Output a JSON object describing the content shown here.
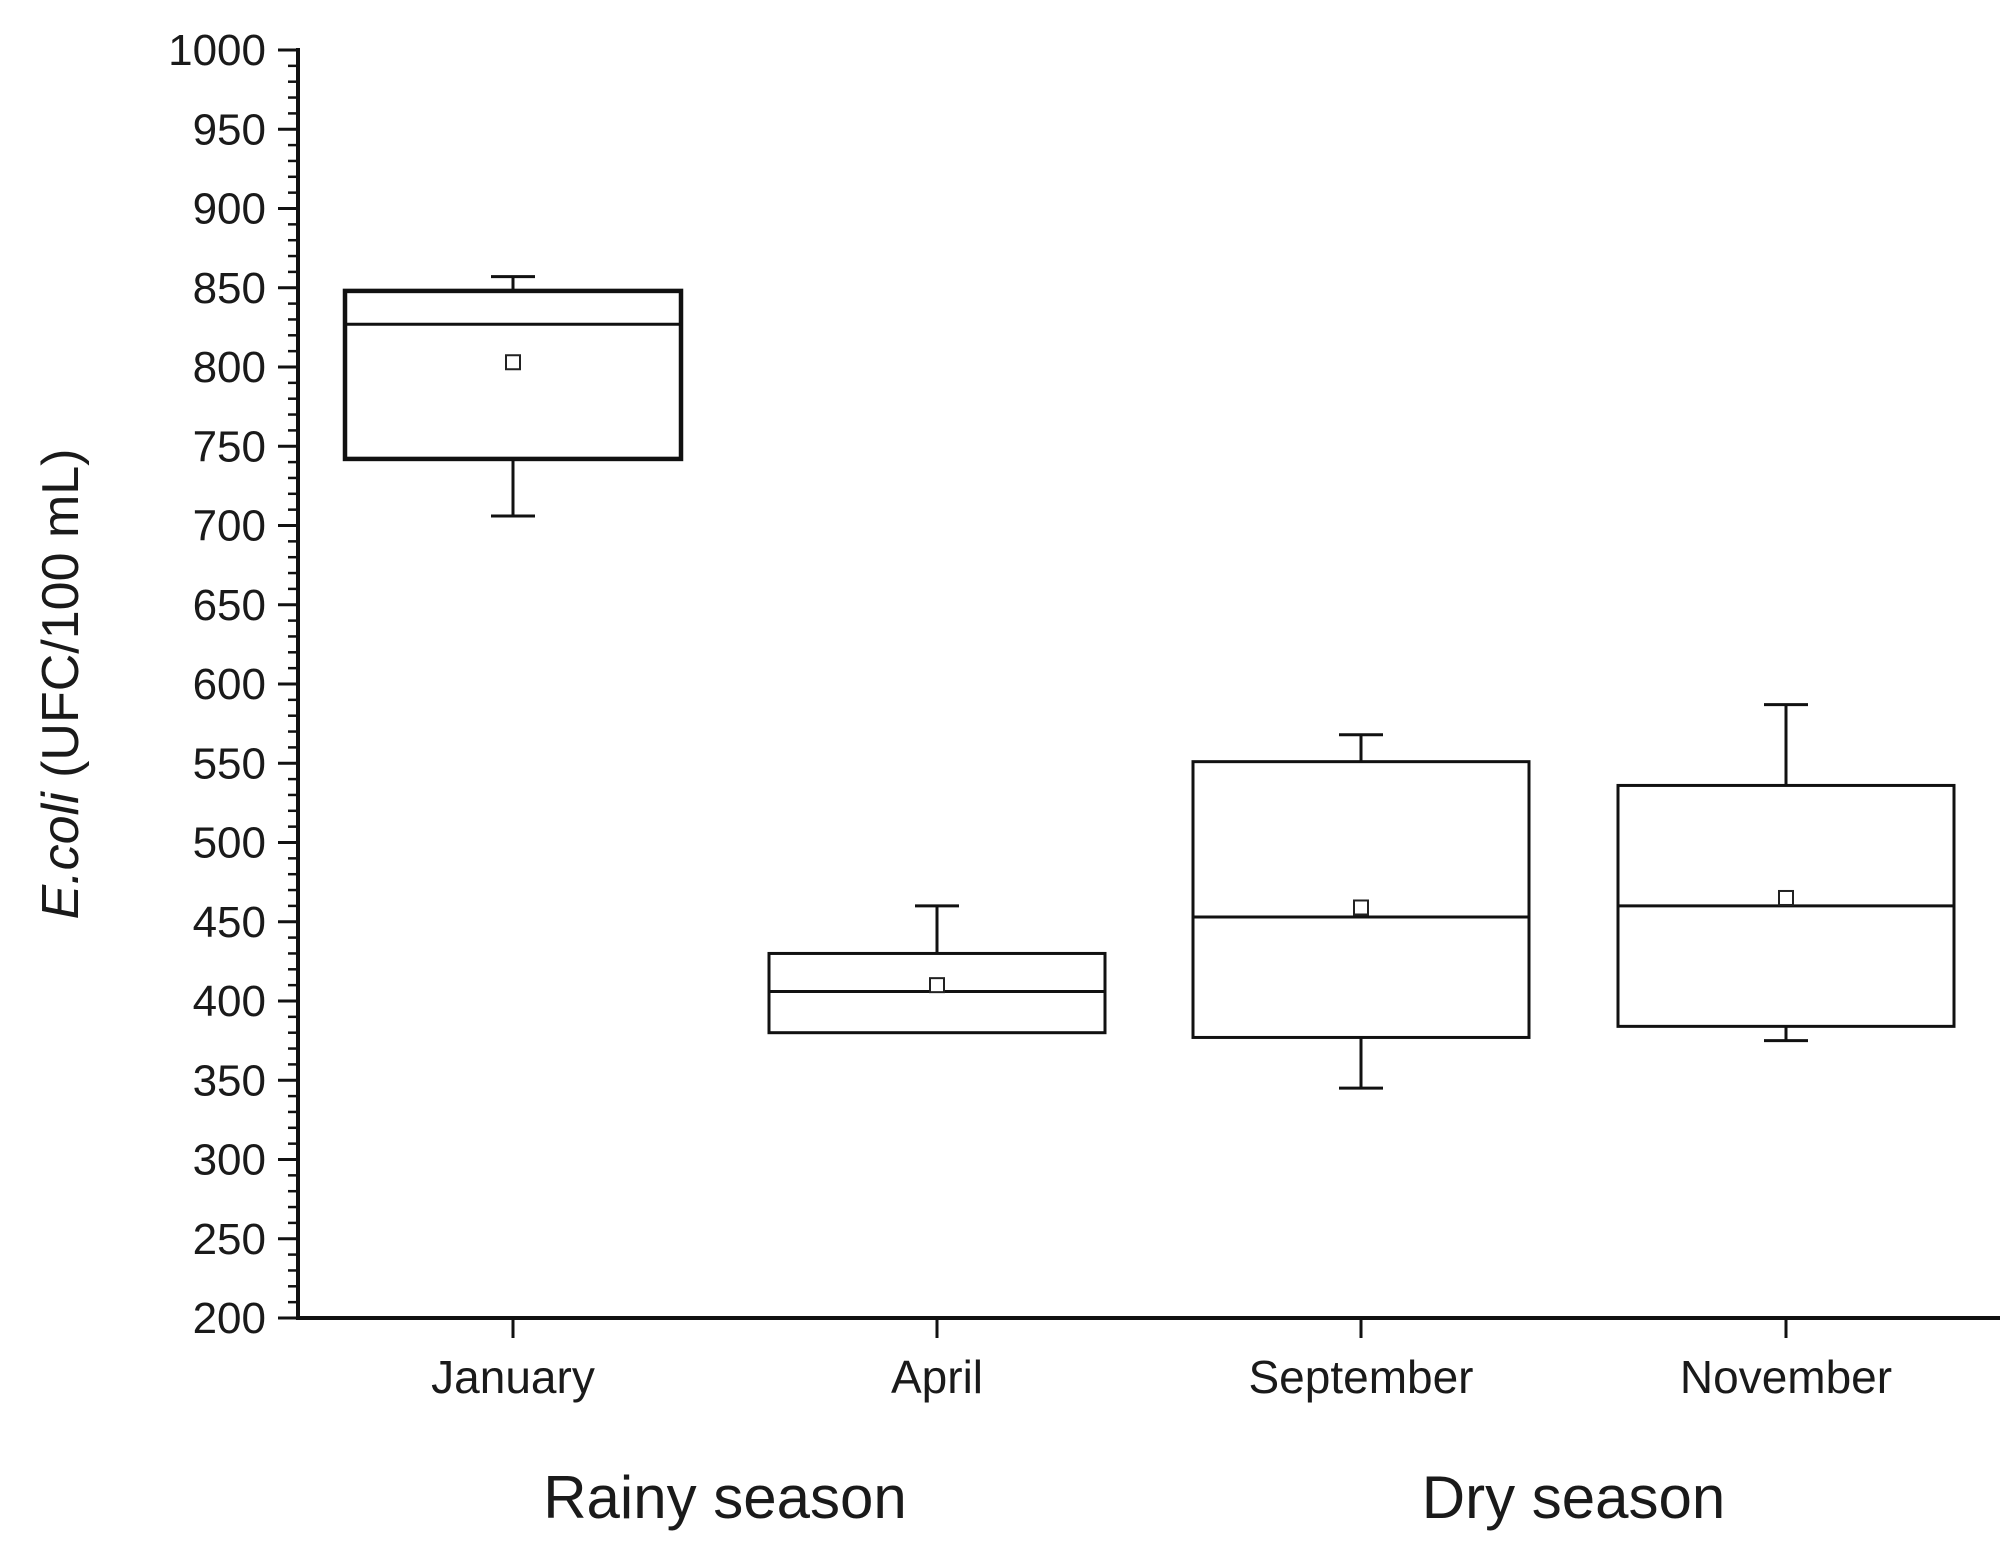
{
  "chart_data": {
    "type": "box",
    "ylabel_italic": "E.coli",
    "ylabel_rest": " (UFC/100 mL)",
    "ylim": [
      200,
      1000
    ],
    "yticks": [
      200,
      250,
      300,
      350,
      400,
      450,
      500,
      550,
      600,
      650,
      700,
      750,
      800,
      850,
      900,
      950,
      1000
    ],
    "categories": [
      "January",
      "April",
      "September",
      "November"
    ],
    "boxes": [
      {
        "category": "January",
        "min": 706,
        "q1": 742,
        "median": 827,
        "q3": 848,
        "max": 857,
        "mean": 803
      },
      {
        "category": "April",
        "min": 380,
        "q1": 380,
        "median": 406,
        "q3": 430,
        "max": 460,
        "mean": 410
      },
      {
        "category": "September",
        "min": 345,
        "q1": 377,
        "median": 453,
        "q3": 551,
        "max": 568,
        "mean": 459
      },
      {
        "category": "November",
        "min": 375,
        "q1": 384,
        "median": 460,
        "q3": 536,
        "max": 587,
        "mean": 465
      }
    ],
    "groups": [
      {
        "label": "Rainy season",
        "categories": [
          "January",
          "April"
        ]
      },
      {
        "label": "Dry season",
        "categories": [
          "September",
          "November"
        ]
      }
    ]
  }
}
